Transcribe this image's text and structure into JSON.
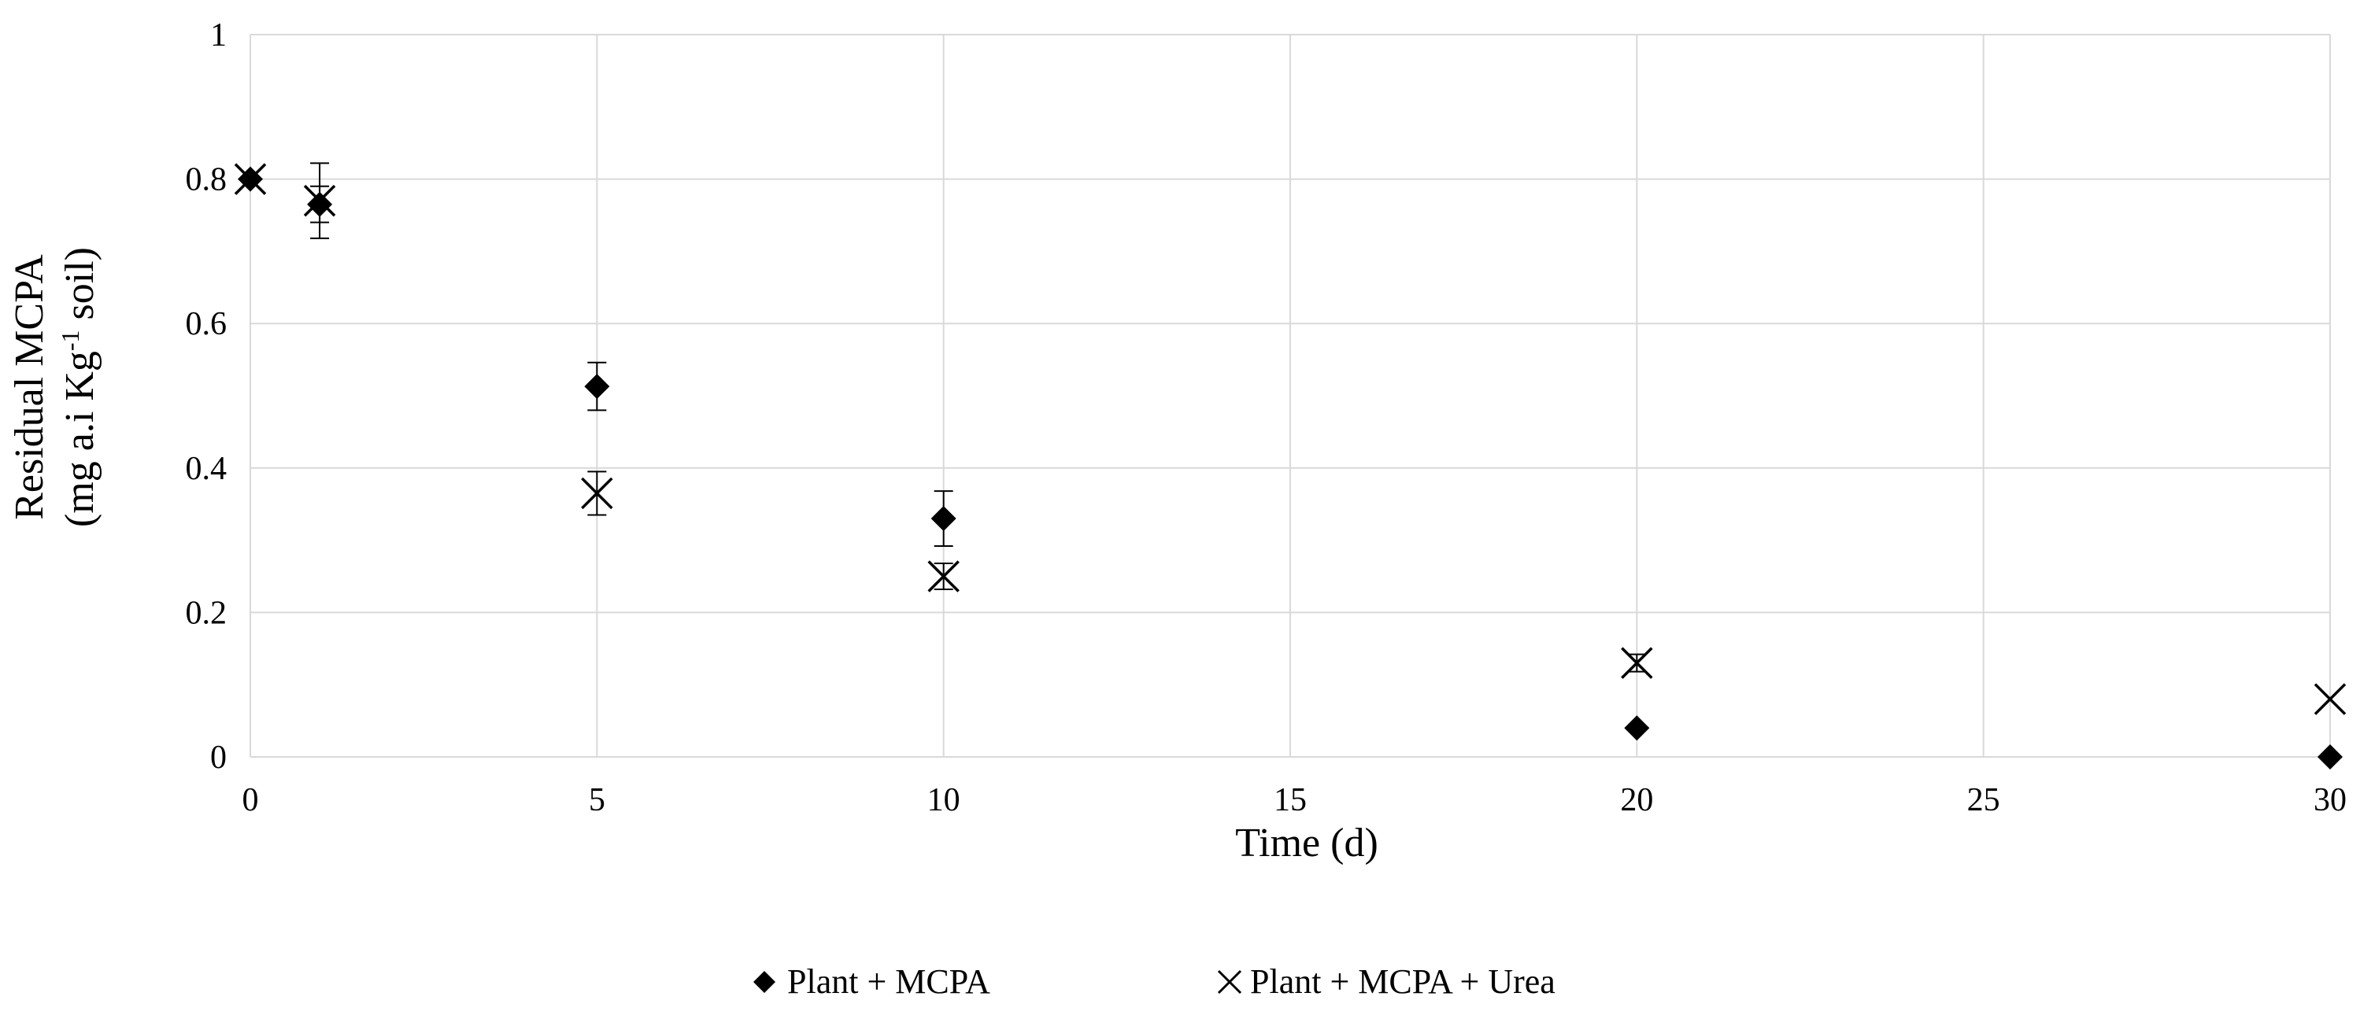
{
  "chart_data": {
    "type": "scatter",
    "title": "",
    "xlabel": "Time (d)",
    "ylabel_line1": "Residual MCPA",
    "ylabel_line2_prefix": "(mg a.i Kg",
    "ylabel_line2_superscript": "-1",
    "ylabel_line2_suffix": " soil)",
    "xlim": [
      0,
      30
    ],
    "ylim": [
      0,
      1
    ],
    "xticks": [
      0,
      5,
      10,
      15,
      20,
      25,
      30
    ],
    "xtick_labels": [
      "0",
      "5",
      "10",
      "15",
      "20",
      "25",
      "30"
    ],
    "yticks": [
      0,
      0.2,
      0.4,
      0.6,
      0.8,
      1
    ],
    "ytick_labels": [
      "0",
      "0.2",
      "0.4",
      "0.6",
      "0.8",
      "1"
    ],
    "grid": true,
    "legend_position": "bottom",
    "series": [
      {
        "name": "Plant + MCPA",
        "marker": "diamond",
        "color": "#000000",
        "points": [
          {
            "x": 0,
            "y": 0.8,
            "err": 0.0
          },
          {
            "x": 1,
            "y": 0.765,
            "err": 0.025
          },
          {
            "x": 5,
            "y": 0.513,
            "err": 0.033
          },
          {
            "x": 10,
            "y": 0.33,
            "err": 0.038
          },
          {
            "x": 20,
            "y": 0.04,
            "err": 0.0
          },
          {
            "x": 30,
            "y": 0.0,
            "err": 0.0
          }
        ]
      },
      {
        "name": "Plant + MCPA + Urea",
        "marker": "x",
        "color": "#000000",
        "points": [
          {
            "x": 0,
            "y": 0.8,
            "err": 0.0
          },
          {
            "x": 1,
            "y": 0.77,
            "err": 0.052
          },
          {
            "x": 5,
            "y": 0.365,
            "err": 0.03
          },
          {
            "x": 10,
            "y": 0.25,
            "err": 0.018
          },
          {
            "x": 20,
            "y": 0.13,
            "err": 0.012
          },
          {
            "x": 30,
            "y": 0.08,
            "err": 0.0
          }
        ]
      }
    ]
  }
}
